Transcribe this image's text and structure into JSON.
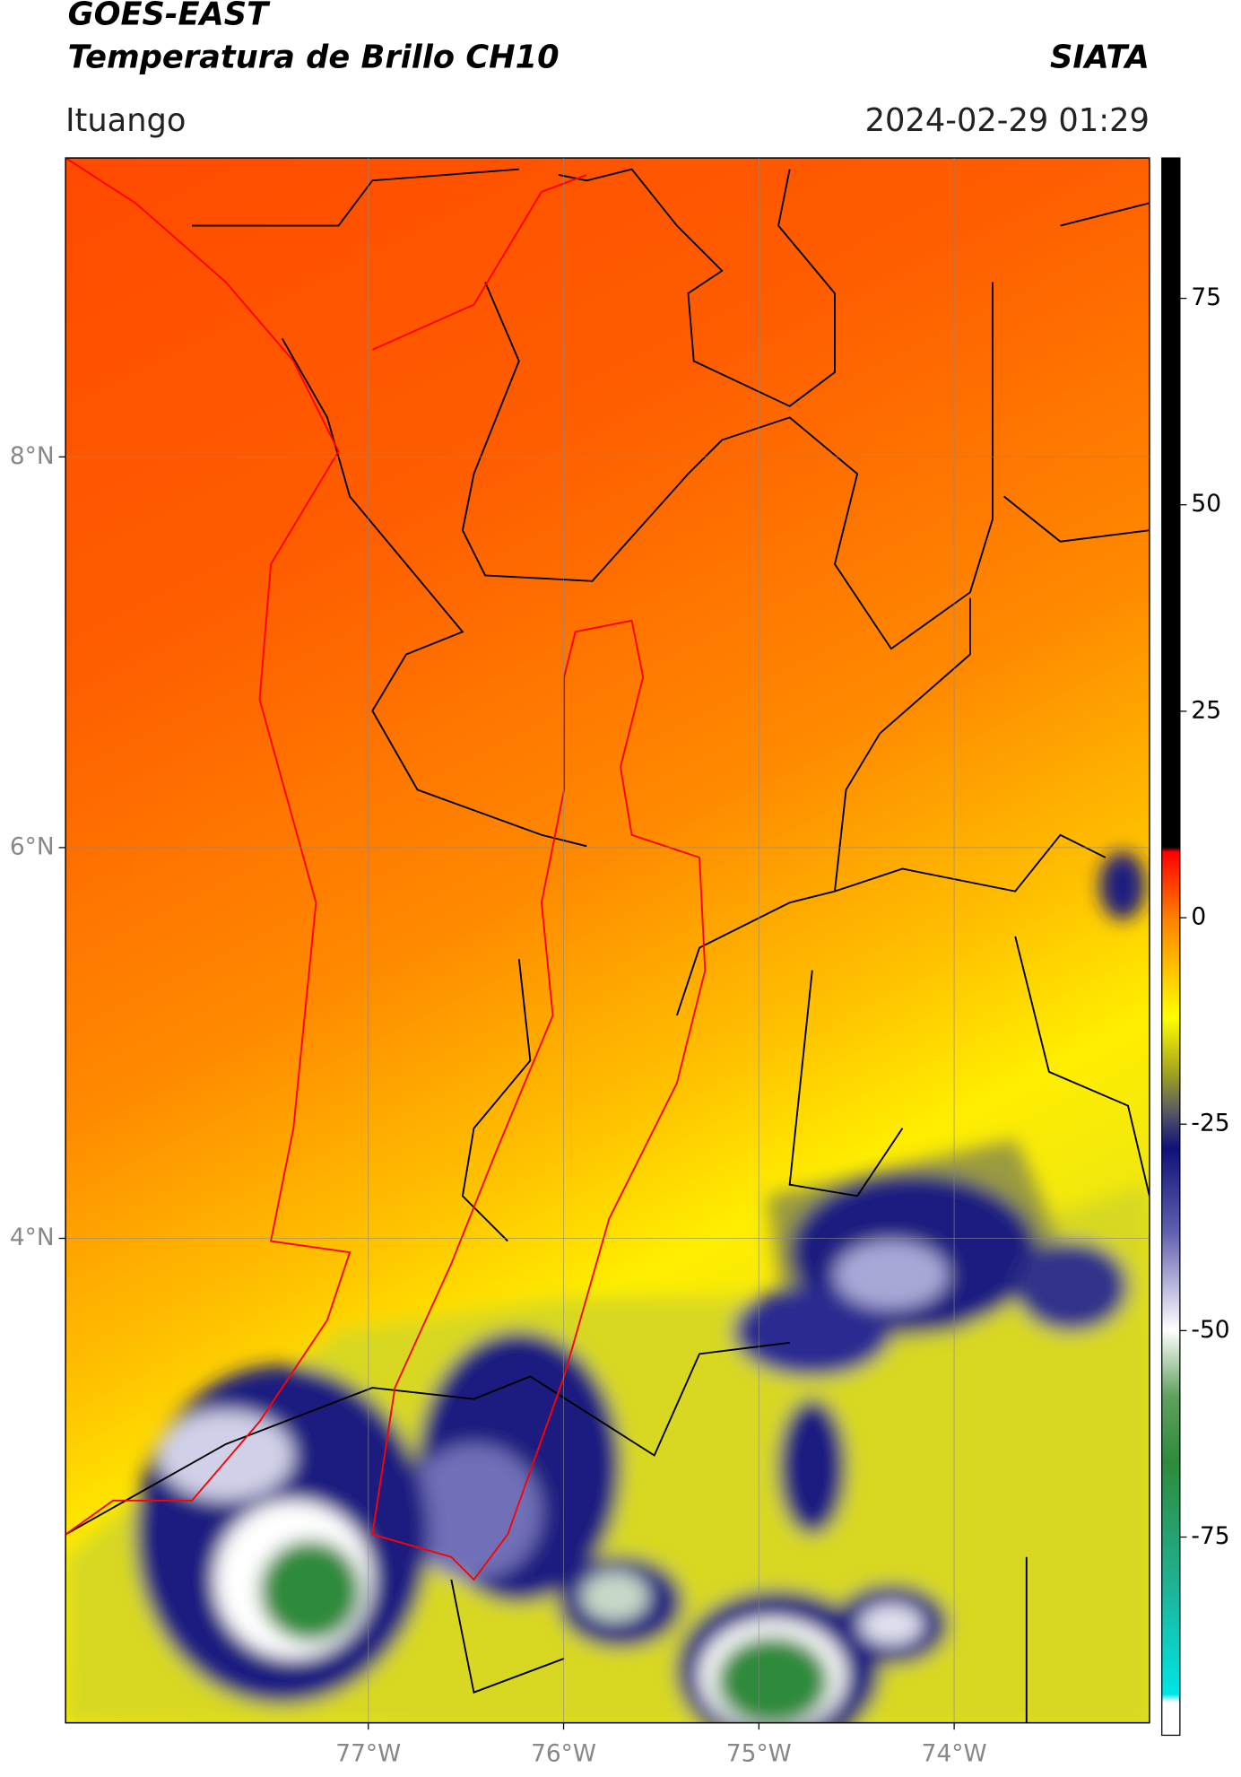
{
  "header": {
    "title": "GOES-EAST",
    "subtitle": "Temperatura de Brillo CH10",
    "source": "SIATA",
    "location": "Ituango",
    "datetime": "2024-02-29 01:29"
  },
  "map": {
    "xlim": [
      -78.55,
      -73.0
    ],
    "ylim": [
      1.52,
      9.53
    ],
    "xticks": [
      {
        "value": -77,
        "label": "77°W"
      },
      {
        "value": -76,
        "label": "76°W"
      },
      {
        "value": -75,
        "label": "75°W"
      },
      {
        "value": -74,
        "label": "74°W"
      }
    ],
    "yticks": [
      {
        "value": 8,
        "label": "8°N"
      },
      {
        "value": 6,
        "label": "6°N"
      },
      {
        "value": 4,
        "label": "4°N"
      }
    ],
    "grid": true
  },
  "colorbar": {
    "lim": [
      -99,
      92
    ],
    "ticks": [
      75,
      50,
      25,
      0,
      -25,
      -50,
      -75
    ]
  }
}
